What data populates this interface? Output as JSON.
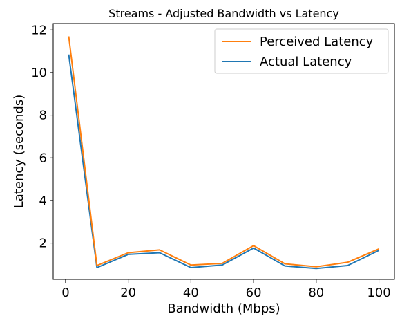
{
  "chart_data": {
    "type": "line",
    "title": "Streams - Adjusted Bandwidth vs Latency",
    "xlabel": "Bandwidth (Mbps)",
    "ylabel": "Latency (seconds)",
    "xlim": [
      -3.95,
      104.95
    ],
    "ylim": [
      0.3,
      12.3
    ],
    "x_ticks": [
      0,
      20,
      40,
      60,
      80,
      100
    ],
    "y_ticks": [
      2,
      4,
      6,
      8,
      10,
      12
    ],
    "grid": false,
    "legend_position": "top-right",
    "x": [
      1,
      10,
      20,
      30,
      40,
      50,
      60,
      70,
      80,
      90,
      100
    ],
    "series": [
      {
        "name": "Perceived Latency",
        "color": "#ff7f0e",
        "values": [
          11.7,
          0.95,
          1.55,
          1.68,
          0.97,
          1.05,
          1.88,
          1.03,
          0.89,
          1.1,
          1.73
        ]
      },
      {
        "name": "Actual Latency",
        "color": "#1f77b4",
        "values": [
          10.85,
          0.85,
          1.47,
          1.55,
          0.85,
          0.97,
          1.77,
          0.93,
          0.81,
          0.95,
          1.66
        ]
      }
    ]
  }
}
